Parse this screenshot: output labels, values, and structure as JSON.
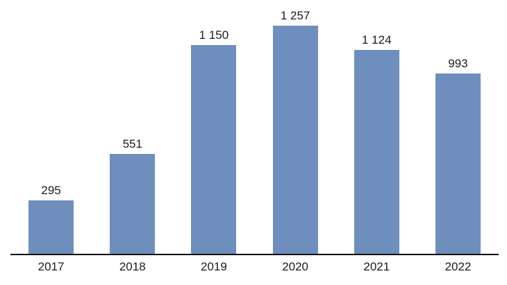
{
  "chart_data": {
    "type": "bar",
    "title": "",
    "xlabel": "",
    "ylabel": "",
    "categories": [
      "2017",
      "2018",
      "2019",
      "2020",
      "2021",
      "2022"
    ],
    "values": [
      295,
      551,
      1150,
      1257,
      1124,
      993
    ],
    "value_labels": [
      "295",
      "551",
      "1 150",
      "1 257",
      "1 124",
      "993"
    ],
    "ylim": [
      0,
      1400
    ],
    "grid": false,
    "legend_position": "none",
    "bar_color": "#6e8ebe",
    "axis_line_color": "#000000",
    "text_color": "#1a1a1a",
    "background_color": "#ffffff"
  }
}
